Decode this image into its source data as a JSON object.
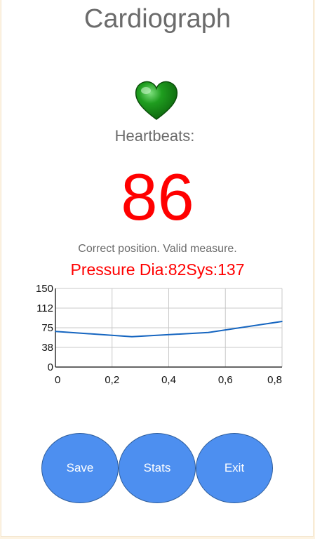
{
  "app": {
    "title": "Cardiograph"
  },
  "heart_icon": "heart-icon",
  "heartbeats": {
    "label": "Heartbeats:",
    "value": "86"
  },
  "status_text": "Correct position. Valid measure.",
  "pressure_text": "Pressure Dia:82Sys:137",
  "buttons": {
    "save": "Save",
    "stats": "Stats",
    "exit": "Exit"
  },
  "colors": {
    "title_gray": "#6b6b6b",
    "value_red": "#ff0000",
    "heart_green": "#1f8d1f",
    "button_blue": "#4d8ff0",
    "line_blue": "#1565c0"
  },
  "chart_data": {
    "type": "line",
    "x": [
      0,
      0.27,
      0.54,
      0.8
    ],
    "series": [
      {
        "values": [
          68,
          58,
          66,
          87
        ]
      }
    ],
    "xlim": [
      0,
      0.8
    ],
    "ylim": [
      0,
      150
    ],
    "x_ticks": [
      "0",
      "0,2",
      "0,4",
      "0,6",
      "0,8"
    ],
    "y_ticks": [
      "150",
      "112",
      "75",
      "38",
      "0"
    ],
    "grid": true
  }
}
